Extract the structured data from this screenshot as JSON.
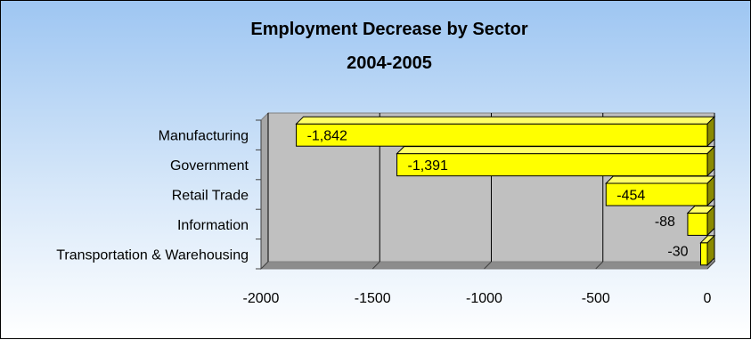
{
  "chart_data": {
    "type": "bar",
    "orientation": "horizontal",
    "title": "Employment Decrease by Sector",
    "subtitle": "2004-2005",
    "categories": [
      "Manufacturing",
      "Government",
      "Retail Trade",
      "Information",
      "Transportation & Warehousing"
    ],
    "values": [
      -1842,
      -1391,
      -454,
      -88,
      -30
    ],
    "value_labels": [
      "-1,842",
      "-1,391",
      "-454",
      "-88",
      "-30"
    ],
    "x_ticks": [
      "-2000",
      "-1500",
      "-1000",
      "-500",
      "0"
    ],
    "xlim": [
      -2000,
      0
    ],
    "grid": true,
    "legend": "none",
    "colors": {
      "bar": "#ffff00",
      "bar_top": "#ffff66",
      "bar_side": "#8a8a00",
      "plot_back": "#c0c0c0",
      "plot_floor": "#8c8c8c",
      "plot_wall": "#a6a6a6"
    }
  }
}
